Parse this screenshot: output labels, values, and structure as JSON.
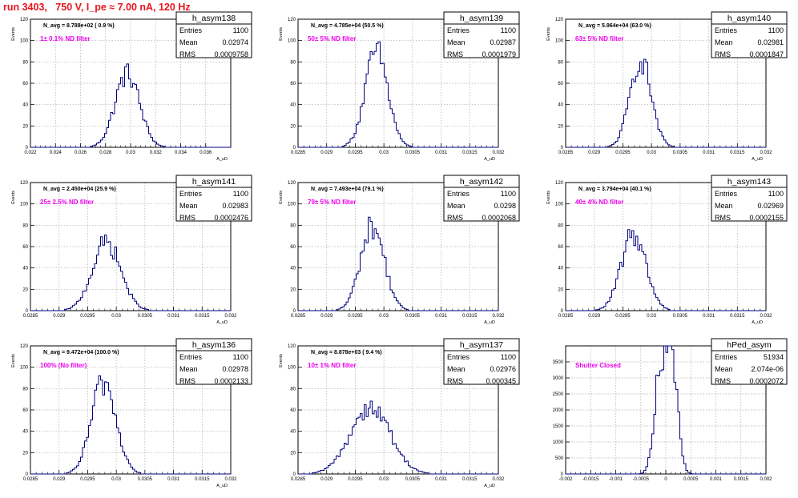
{
  "page": {
    "title": "run 3403,   750 V, I_pe ≈ 7.00 nA, 120 Hz",
    "title_color": "#e8141c",
    "annotation_color": "#ee00ee",
    "histogram_color": "#000080"
  },
  "chart_data": [
    {
      "type": "histogram",
      "name": "h_asym138",
      "navg": "N_avg = 8.788e+02 ( 0.9 %)",
      "filter": "1± 0.1% ND filter",
      "stats": {
        "Entries": "1100",
        "Mean": "0.02974",
        "RMS": "0.0009758"
      },
      "xlim": [
        0.022,
        0.038
      ],
      "ylim": [
        0,
        120
      ],
      "xticks": [
        "0.022",
        "0.024",
        "0.026",
        "0.028",
        "0.03",
        "0.032",
        "0.034",
        "0.036"
      ],
      "yticks": [
        "0",
        "20",
        "40",
        "60",
        "80",
        "100",
        "120"
      ],
      "ylabel": "Events",
      "xlabel": "A_uD",
      "mean": 0.02974,
      "rms": 0.0009758,
      "peak": 71,
      "nbins": 100
    },
    {
      "type": "histogram",
      "name": "h_asym139",
      "navg": "N_avg = 4.785e+04 (50.5 %)",
      "filter": "50± 5% ND filter",
      "stats": {
        "Entries": "1100",
        "Mean": "0.02987",
        "RMS": "0.0001979"
      },
      "xlim": [
        0.0285,
        0.032
      ],
      "ylim": [
        0,
        120
      ],
      "xticks": [
        "0.0285",
        "0.029",
        "0.0295",
        "0.03",
        "0.0305",
        "0.031",
        "0.0315",
        "0.032"
      ],
      "yticks": [
        "0",
        "20",
        "40",
        "60",
        "80",
        "100",
        "120"
      ],
      "ylabel": "Events",
      "xlabel": "A_uD",
      "mean": 0.02987,
      "rms": 0.0001979,
      "peak": 92,
      "nbins": 100
    },
    {
      "type": "histogram",
      "name": "h_asym140",
      "navg": "N_avg = 5.964e+04 (63.0 %)",
      "filter": "63± 5% ND filter",
      "stats": {
        "Entries": "1100",
        "Mean": "0.02981",
        "RMS": "0.0001847"
      },
      "xlim": [
        0.0285,
        0.032
      ],
      "ylim": [
        0,
        120
      ],
      "xticks": [
        "0.0285",
        "0.029",
        "0.0295",
        "0.03",
        "0.0305",
        "0.031",
        "0.0315",
        "0.032"
      ],
      "yticks": [
        "0",
        "20",
        "40",
        "60",
        "80",
        "100",
        "120"
      ],
      "ylabel": "Events",
      "xlabel": "A_uD",
      "mean": 0.02981,
      "rms": 0.0001847,
      "peak": 85,
      "nbins": 100
    },
    {
      "type": "histogram",
      "name": "h_asym141",
      "navg": "N_avg = 2.450e+04 (25.9 %)",
      "filter": "25± 2.5% ND filter",
      "stats": {
        "Entries": "1100",
        "Mean": "0.02983",
        "RMS": "0.0002476"
      },
      "xlim": [
        0.0285,
        0.032
      ],
      "ylim": [
        0,
        120
      ],
      "xticks": [
        "0.0285",
        "0.029",
        "0.0295",
        "0.03",
        "0.0305",
        "0.031",
        "0.0315",
        "0.032"
      ],
      "yticks": [
        "0",
        "20",
        "40",
        "60",
        "80",
        "100",
        "120"
      ],
      "ylabel": "Events",
      "xlabel": "A_uD",
      "mean": 0.02983,
      "rms": 0.0002476,
      "peak": 66,
      "nbins": 100
    },
    {
      "type": "histogram",
      "name": "h_asym142",
      "navg": "N_avg = 7.493e+04 (79.1 %)",
      "filter": "79± 5% ND filter",
      "stats": {
        "Entries": "1100",
        "Mean": "0.0298",
        "RMS": "0.0002068"
      },
      "xlim": [
        0.0285,
        0.032
      ],
      "ylim": [
        0,
        120
      ],
      "xticks": [
        "0.0285",
        "0.029",
        "0.0295",
        "0.03",
        "0.0305",
        "0.031",
        "0.0315",
        "0.032"
      ],
      "yticks": [
        "0",
        "20",
        "40",
        "60",
        "80",
        "100",
        "120"
      ],
      "ylabel": "Events",
      "xlabel": "A_uD",
      "mean": 0.0298,
      "rms": 0.0002068,
      "peak": 82,
      "nbins": 100
    },
    {
      "type": "histogram",
      "name": "h_asym143",
      "navg": "N_avg = 3.794e+04 (40.1 %)",
      "filter": "40± 4% ND filter",
      "stats": {
        "Entries": "1100",
        "Mean": "0.02969",
        "RMS": "0.0002155"
      },
      "xlim": [
        0.0285,
        0.032
      ],
      "ylim": [
        0,
        120
      ],
      "xticks": [
        "0.0285",
        "0.029",
        "0.0295",
        "0.03",
        "0.0305",
        "0.031",
        "0.0315",
        "0.032"
      ],
      "yticks": [
        "0",
        "20",
        "40",
        "60",
        "80",
        "100",
        "120"
      ],
      "ylabel": "Events",
      "xlabel": "A_uD",
      "mean": 0.02969,
      "rms": 0.0002155,
      "peak": 74,
      "nbins": 100
    },
    {
      "type": "histogram",
      "name": "h_asym136",
      "navg": "N_avg = 9.472e+04 (100.0 %)",
      "filter": "100% (No filter)",
      "stats": {
        "Entries": "1100",
        "Mean": "0.02978",
        "RMS": "0.0002133"
      },
      "xlim": [
        0.0285,
        0.032
      ],
      "ylim": [
        0,
        120
      ],
      "xticks": [
        "0.0285",
        "0.029",
        "0.0295",
        "0.03",
        "0.0305",
        "0.031",
        "0.0315",
        "0.032"
      ],
      "yticks": [
        "0",
        "20",
        "40",
        "60",
        "80",
        "100",
        "120"
      ],
      "ylabel": "Events",
      "xlabel": "A_uD",
      "mean": 0.02978,
      "rms": 0.0002133,
      "peak": 89,
      "nbins": 100
    },
    {
      "type": "histogram",
      "name": "h_asym137",
      "navg": "N_avg = 8.878e+03 ( 9.4 %)",
      "filter": "10± 1% ND filter",
      "stats": {
        "Entries": "1100",
        "Mean": "0.02976",
        "RMS": "0.000345"
      },
      "xlim": [
        0.0285,
        0.032
      ],
      "ylim": [
        0,
        120
      ],
      "xticks": [
        "0.0285",
        "0.029",
        "0.0295",
        "0.03",
        "0.0305",
        "0.031",
        "0.0315",
        "0.032"
      ],
      "yticks": [
        "0",
        "20",
        "40",
        "60",
        "80",
        "100",
        "120"
      ],
      "ylabel": "Events",
      "xlabel": "A_uD",
      "mean": 0.02976,
      "rms": 0.000345,
      "peak": 65,
      "nbins": 100
    },
    {
      "type": "histogram",
      "name": "hPed_asym",
      "navg": "",
      "filter": "Shutter Closed",
      "stats": {
        "Entries": "51934",
        "Mean": "2.074e-06",
        "RMS": "0.0002072"
      },
      "xlim": [
        -0.002,
        0.002
      ],
      "ylim": [
        0,
        4000
      ],
      "xticks": [
        "-0.002",
        "-0.0015",
        "-0.001",
        "-0.0005",
        "0",
        "0.0005",
        "0.001",
        "0.0015",
        "0.002"
      ],
      "yticks": [
        "0",
        "500",
        "1000",
        "1500",
        "2000",
        "2500",
        "3000",
        "3500"
      ],
      "ylabel": "",
      "xlabel": "",
      "mean": 2e-06,
      "rms": 0.0002072,
      "peak": 3750,
      "nbins": 100,
      "bimodal": true
    }
  ]
}
